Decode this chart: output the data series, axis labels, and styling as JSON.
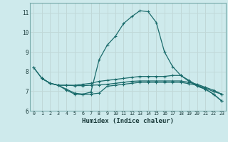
{
  "xlabel": "Humidex (Indice chaleur)",
  "bg_color": "#ceeaec",
  "grid_color": "#c0d8d8",
  "line_color": "#1a6b6b",
  "xlim": [
    -0.5,
    23.5
  ],
  "ylim": [
    6.0,
    11.5
  ],
  "yticks": [
    6,
    7,
    8,
    9,
    10,
    11
  ],
  "xticks": [
    0,
    1,
    2,
    3,
    4,
    5,
    6,
    7,
    8,
    9,
    10,
    11,
    12,
    13,
    14,
    15,
    16,
    17,
    18,
    19,
    20,
    21,
    22,
    23
  ],
  "line1_x": [
    0,
    1,
    2,
    3,
    4,
    5,
    6,
    7,
    8,
    9,
    10,
    11,
    12,
    13,
    14,
    15,
    16,
    17,
    18,
    19,
    20,
    21,
    22,
    23
  ],
  "line1_y": [
    8.2,
    7.65,
    7.4,
    7.3,
    7.1,
    6.9,
    6.85,
    6.95,
    8.6,
    9.35,
    9.8,
    10.45,
    10.8,
    11.1,
    11.05,
    10.5,
    9.0,
    8.25,
    7.8,
    7.5,
    7.25,
    7.1,
    6.85,
    6.5
  ],
  "line2_x": [
    0,
    1,
    2,
    3,
    4,
    5,
    6,
    7,
    8,
    9,
    10,
    11,
    12,
    13,
    14,
    15,
    16,
    17,
    18,
    19,
    20,
    21,
    22,
    23
  ],
  "line2_y": [
    8.2,
    7.65,
    7.4,
    7.3,
    7.3,
    7.3,
    7.35,
    7.4,
    7.5,
    7.55,
    7.6,
    7.65,
    7.7,
    7.75,
    7.75,
    7.75,
    7.75,
    7.8,
    7.8,
    7.55,
    7.3,
    7.1,
    6.85,
    6.5
  ],
  "line3_x": [
    1,
    2,
    3,
    4,
    5,
    6,
    7,
    8,
    9,
    10,
    11,
    12,
    13,
    14,
    15,
    16,
    17,
    18,
    19,
    20,
    21,
    22,
    23
  ],
  "line3_y": [
    7.65,
    7.4,
    7.3,
    7.3,
    7.28,
    7.28,
    7.3,
    7.32,
    7.35,
    7.4,
    7.45,
    7.5,
    7.52,
    7.52,
    7.52,
    7.52,
    7.52,
    7.52,
    7.45,
    7.35,
    7.2,
    7.05,
    6.85
  ],
  "line4_x": [
    1,
    2,
    3,
    4,
    5,
    6,
    7,
    8,
    9,
    10,
    11,
    12,
    13,
    14,
    15,
    16,
    17,
    18,
    19,
    20,
    21,
    22,
    23
  ],
  "line4_y": [
    7.65,
    7.4,
    7.3,
    7.05,
    6.85,
    6.82,
    6.85,
    6.9,
    7.25,
    7.3,
    7.35,
    7.4,
    7.45,
    7.45,
    7.45,
    7.45,
    7.45,
    7.45,
    7.38,
    7.3,
    7.15,
    6.98,
    6.85
  ]
}
